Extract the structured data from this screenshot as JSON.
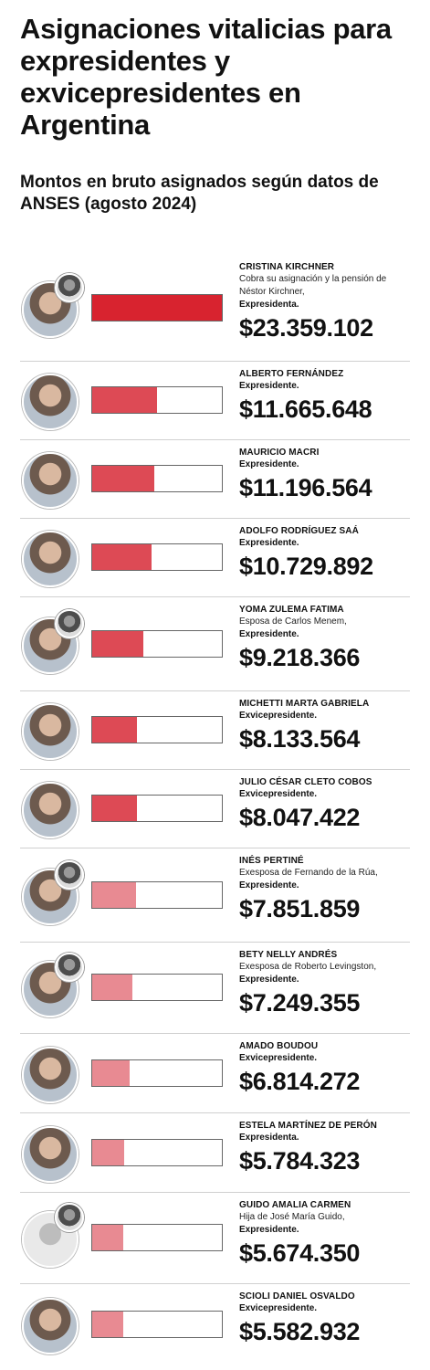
{
  "header": {
    "title": "Asignaciones vitalicias para expresidentes y exvicepresidentes en Argentina",
    "subtitle": "Montos en bruto asignados según datos de ANSES (agosto 2024)"
  },
  "colors": {
    "bar_strong": "#d8232f",
    "bar_mid": "#dd4a55",
    "bar_light": "#e88a92"
  },
  "chart_data": {
    "type": "bar",
    "title": "Asignaciones vitalicias para expresidentes y exvicepresidentes en Argentina",
    "subtitle": "Montos en bruto asignados según datos de ANSES (agosto 2024)",
    "categories": [
      "CRISTINA KIRCHNER",
      "ALBERTO FERNÁNDEZ",
      "MAURICIO MACRI",
      "ADOLFO RODRÍGUEZ SAÁ",
      "YOMA ZULEMA FATIMA",
      "MICHETTI MARTA GABRIELA",
      "JULIO CÉSAR CLETO COBOS",
      "INÉS PERTINÉ",
      "BETY NELLY ANDRÉS",
      "AMADO BOUDOU",
      "ESTELA MARTÍNEZ DE PERÓN",
      "GUIDO AMALIA CARMEN",
      "SCIOLI DANIEL OSVALDO"
    ],
    "values": [
      23359102,
      11665648,
      11196564,
      10729892,
      9218366,
      8133564,
      8047422,
      7851859,
      7249355,
      6814272,
      5784323,
      5674350,
      5582932
    ],
    "xlim": [
      0,
      23359102
    ],
    "rows": [
      {
        "name": "CRISTINA KIRCHNER",
        "note": "Cobra su asignación y la pensión de Néstor Kirchner,",
        "role": "Expresidenta.",
        "amount": "$23.359.102",
        "value": 23359102,
        "inset_icon": "portrait-inset-icon",
        "shade": "strong"
      },
      {
        "name": "ALBERTO FERNÁNDEZ",
        "note": "",
        "role": "Expresidente.",
        "amount": "$11.665.648",
        "value": 11665648,
        "inset_icon": "",
        "shade": "mid"
      },
      {
        "name": "MAURICIO MACRI",
        "note": "",
        "role": "Expresidente.",
        "amount": "$11.196.564",
        "value": 11196564,
        "inset_icon": "",
        "shade": "mid"
      },
      {
        "name": "ADOLFO RODRÍGUEZ SAÁ",
        "note": "",
        "role": "Expresidente.",
        "amount": "$10.729.892",
        "value": 10729892,
        "inset_icon": "",
        "shade": "mid"
      },
      {
        "name": "YOMA ZULEMA FATIMA",
        "note": "Esposa de Carlos Menem,",
        "role": "Expresidente.",
        "amount": "$9.218.366",
        "value": 9218366,
        "inset_icon": "portrait-inset-icon",
        "shade": "mid"
      },
      {
        "name": "MICHETTI MARTA GABRIELA",
        "note": "",
        "role": "Exvicepresidente.",
        "amount": "$8.133.564",
        "value": 8133564,
        "inset_icon": "",
        "shade": "mid"
      },
      {
        "name": "JULIO CÉSAR CLETO COBOS",
        "note": "",
        "role": "Exvicepresidente.",
        "amount": "$8.047.422",
        "value": 8047422,
        "inset_icon": "",
        "shade": "mid"
      },
      {
        "name": "INÉS PERTINÉ",
        "note": "Exesposa de Fernando de la Rúa,",
        "role": "Expresidente.",
        "amount": "$7.851.859",
        "value": 7851859,
        "inset_icon": "portrait-inset-icon",
        "shade": "light"
      },
      {
        "name": "BETY NELLY ANDRÉS",
        "note": "Exesposa de Roberto Levingston,",
        "role": "Expresidente.",
        "amount": "$7.249.355",
        "value": 7249355,
        "inset_icon": "portrait-inset-icon",
        "shade": "light"
      },
      {
        "name": "AMADO BOUDOU",
        "note": "",
        "role": "Exvicepresidente.",
        "amount": "$6.814.272",
        "value": 6814272,
        "inset_icon": "",
        "shade": "light"
      },
      {
        "name": "ESTELA MARTÍNEZ DE PERÓN",
        "note": "",
        "role": "Expresidenta.",
        "amount": "$5.784.323",
        "value": 5784323,
        "inset_icon": "",
        "shade": "light"
      },
      {
        "name": "GUIDO AMALIA CARMEN",
        "note": "Hija de José María Guido,",
        "role": "Expresidente.",
        "amount": "$5.674.350",
        "value": 5674350,
        "inset_icon": "portrait-inset-icon",
        "shade": "light",
        "placeholder_photo": true
      },
      {
        "name": "SCIOLI DANIEL OSVALDO",
        "note": "",
        "role": "Exvicepresidente.",
        "amount": "$5.582.932",
        "value": 5582932,
        "inset_icon": "",
        "shade": "light"
      }
    ]
  }
}
